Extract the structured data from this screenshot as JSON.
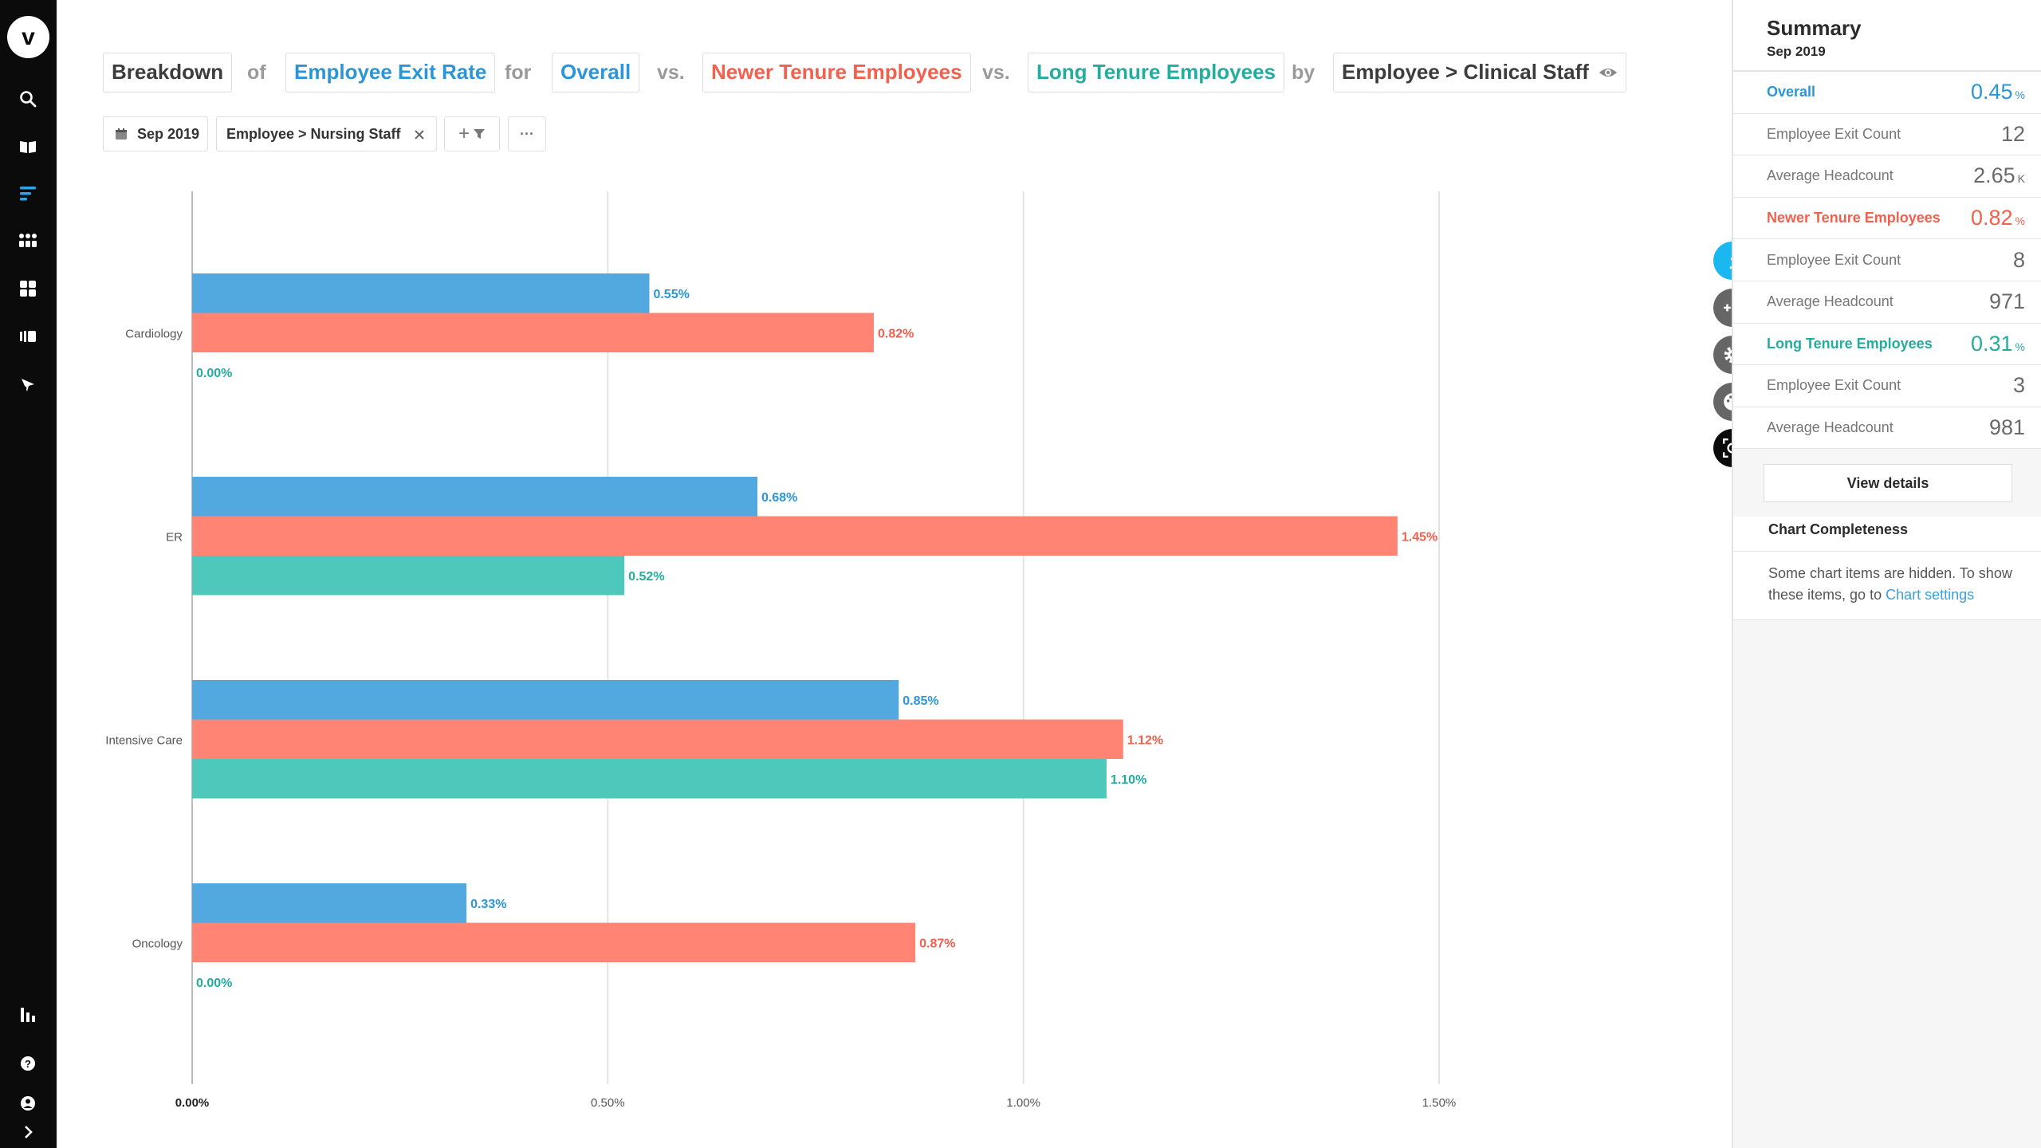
{
  "nav": {
    "logo": "v",
    "items": [
      "search-icon",
      "library-icon",
      "breakdown-icon",
      "grid-dots-icon",
      "dashboard-icon",
      "storyboard-icon",
      "explore-icon"
    ],
    "bottom": [
      "stats-icon",
      "help-icon",
      "account-icon",
      "expand-icon"
    ]
  },
  "query": {
    "breakdown": "Breakdown",
    "of": "of",
    "metric": "Employee Exit Rate",
    "for": "for",
    "overall": "Overall",
    "vs1": "vs.",
    "newer": "Newer Tenure Employees",
    "vs2": "vs.",
    "long": "Long Tenure Employees",
    "by": "by",
    "dimension": "Employee > Clinical Staff"
  },
  "filters": {
    "date": "Sep 2019",
    "filter": "Employee > Nursing Staff",
    "add_symbol": "+",
    "more": "···"
  },
  "colors": {
    "overall": "#52a9e0",
    "newer": "#ff8474",
    "long": "#4fc8bc",
    "overall_text": "#2a96d8",
    "newer_text": "#f2604e",
    "long_text": "#22ad9f"
  },
  "chart_data": {
    "type": "bar",
    "orientation": "horizontal",
    "categories": [
      "Cardiology",
      "ER",
      "Intensive Care",
      "Oncology"
    ],
    "series": [
      {
        "name": "Overall",
        "values": [
          0.55,
          0.68,
          0.85,
          0.33
        ],
        "labels": [
          "0.55%",
          "0.68%",
          "0.85%",
          "0.33%"
        ]
      },
      {
        "name": "Newer Tenure Employees",
        "values": [
          0.82,
          1.45,
          1.12,
          0.87
        ],
        "labels": [
          "0.82%",
          "1.45%",
          "1.12%",
          "0.87%"
        ]
      },
      {
        "name": "Long Tenure Employees",
        "values": [
          0.0,
          0.52,
          1.1,
          0.0
        ],
        "labels": [
          "0.00%",
          "0.52%",
          "1.10%",
          "0.00%"
        ]
      }
    ],
    "xlim": [
      0,
      1.5
    ],
    "xticks": [
      0,
      0.5,
      1.0,
      1.5
    ],
    "xtick_labels": [
      "0.00%",
      "0.50%",
      "1.00%",
      "1.50%"
    ],
    "grid": true
  },
  "summary": {
    "title": "Summary",
    "date": "Sep 2019",
    "rows": [
      {
        "label": "Overall",
        "value": "0.45",
        "unit": "%",
        "kind": "overall"
      },
      {
        "label": "Employee Exit Count",
        "value": "12",
        "unit": "",
        "kind": "plain"
      },
      {
        "label": "Average Headcount",
        "value": "2.65",
        "unit": "K",
        "kind": "plain"
      },
      {
        "label": "Newer Tenure Employees",
        "value": "0.82",
        "unit": "%",
        "kind": "newer"
      },
      {
        "label": "Employee Exit Count",
        "value": "8",
        "unit": "",
        "kind": "plain"
      },
      {
        "label": "Average Headcount",
        "value": "971",
        "unit": "",
        "kind": "plain"
      },
      {
        "label": "Long Tenure Employees",
        "value": "0.31",
        "unit": "%",
        "kind": "long"
      },
      {
        "label": "Employee Exit Count",
        "value": "3",
        "unit": "",
        "kind": "plain"
      },
      {
        "label": "Average Headcount",
        "value": "981",
        "unit": "",
        "kind": "plain"
      }
    ],
    "view_details": "View details",
    "completeness_title": "Chart Completeness",
    "completeness_text": "Some chart items are hidden. To show these items, go to ",
    "completeness_link": "Chart settings"
  },
  "tools": [
    "info-icon",
    "add-list-icon",
    "settings-gear-icon",
    "palette-icon",
    "screenshot-icon"
  ]
}
